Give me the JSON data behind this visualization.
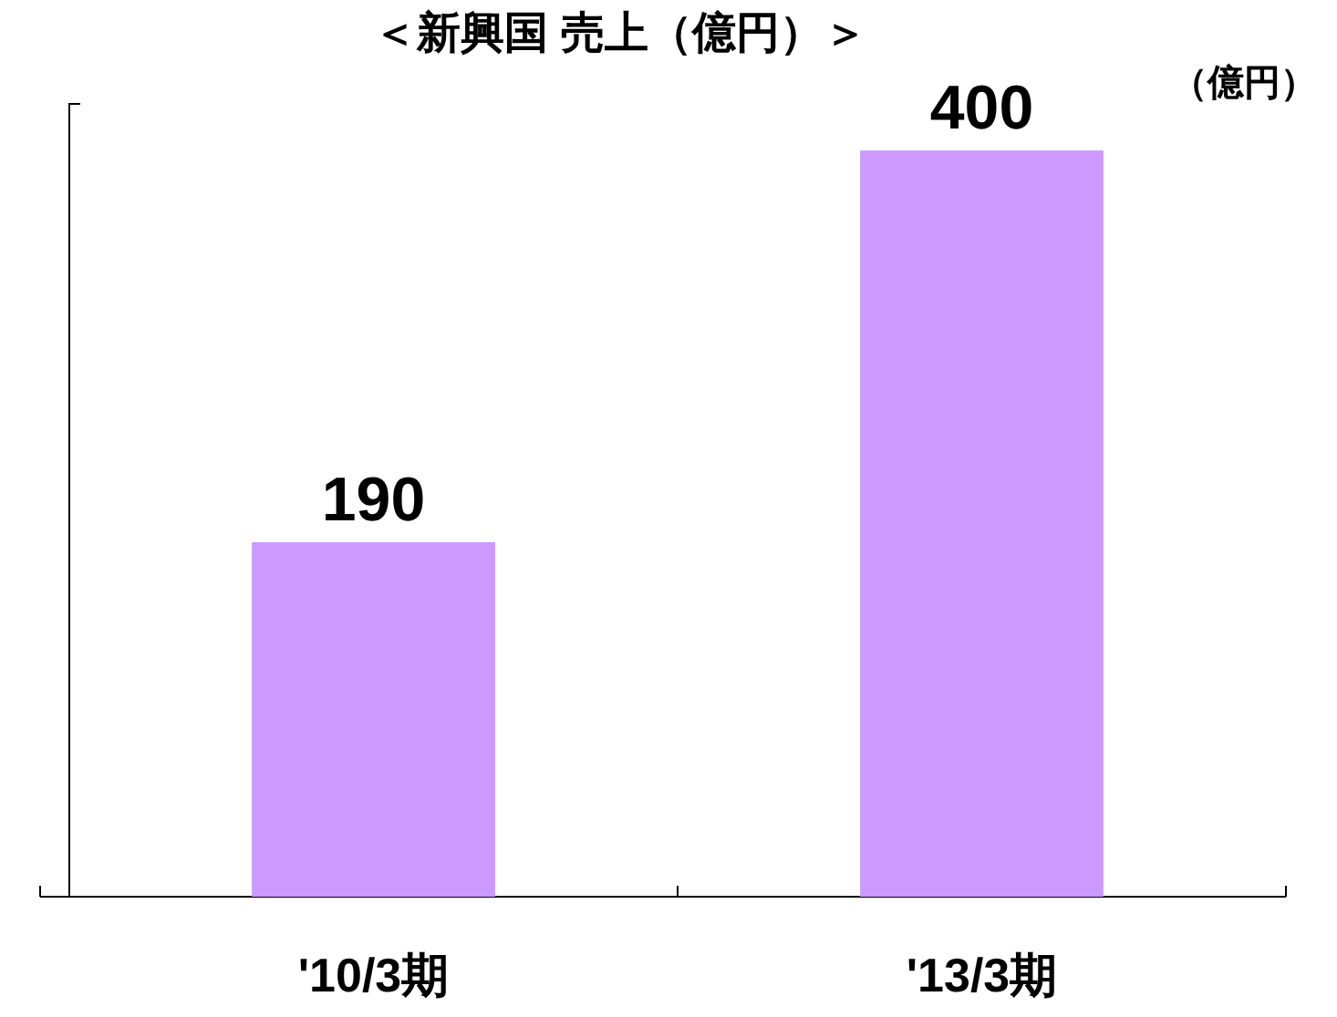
{
  "chart_data": {
    "type": "bar",
    "title": "＜新興国 売上（億円）＞",
    "ylabel": "（億円）",
    "categories": [
      "'10/3期",
      "'13/3期"
    ],
    "values": [
      190,
      400
    ],
    "color": "#cc99ff",
    "ylim": [
      0,
      425
    ],
    "data_labels": true,
    "tick_labels": "x"
  }
}
